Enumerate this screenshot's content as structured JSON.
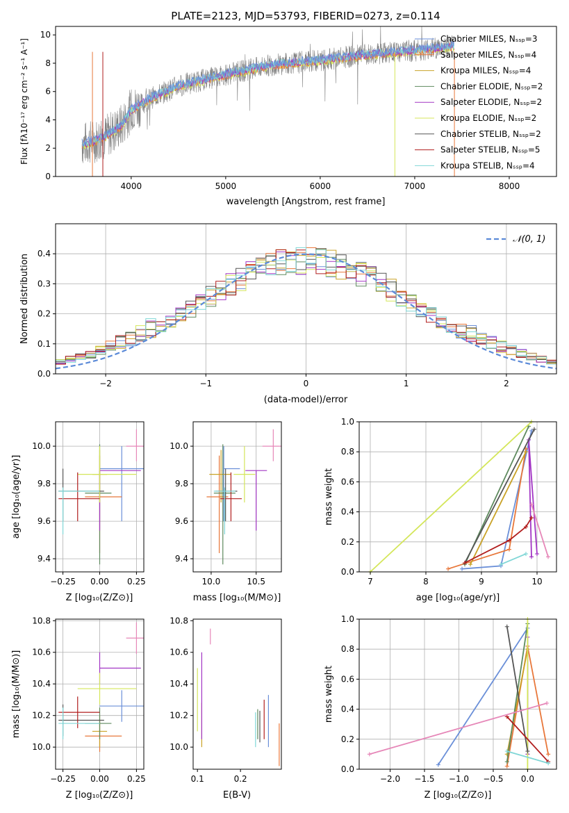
{
  "colors": {
    "chabrier_miles": "#6a8fd8",
    "salpeter_miles": "#e8773a",
    "kroupa_miles": "#c9a227",
    "chabrier_elodie": "#5e8a5e",
    "salpeter_elodie": "#a235c4",
    "kroupa_elodie": "#d4e65a",
    "chabrier_stelib": "#555555",
    "salpeter_stelib": "#b11d1d",
    "kroupa_stelib": "#7fd6d6",
    "pink": "#e687b8",
    "lime": "#c8e85a",
    "spectrum_gray": "#808080",
    "gaussian": "#5b8ad8",
    "grid": "#b0b0b0"
  },
  "chart_data": [
    {
      "type": "line",
      "title": "PLATE=2123, MJD=53793, FIBERID=0273, z=0.114",
      "xlabel": "wavelength [Angstrom, rest frame]",
      "ylabel": "Flux [fλ10⁻¹⁷ erg cm⁻² s⁻¹ A⁻¹]",
      "xlim": [
        3200,
        8500
      ],
      "ylim": [
        0,
        10.6
      ],
      "xticks": [
        "4000",
        "5000",
        "6000",
        "7000",
        "8000"
      ],
      "yticks": [
        "0",
        "2",
        "4",
        "6",
        "8",
        "10"
      ],
      "legend_position": "right",
      "legend": [
        {
          "label": "Chabrier MILES, Nₛₛₚ=3",
          "color_key": "chabrier_miles"
        },
        {
          "label": "Salpeter MILES, Nₛₛₚ=4",
          "color_key": "salpeter_miles"
        },
        {
          "label": "Kroupa MILES, Nₛₛₚ=4",
          "color_key": "kroupa_miles"
        },
        {
          "label": "Chabrier ELODIE, Nₛₛₚ=2",
          "color_key": "chabrier_elodie"
        },
        {
          "label": "Salpeter ELODIE, Nₛₛₚ=2",
          "color_key": "salpeter_elodie"
        },
        {
          "label": "Kroupa ELODIE, Nₛₛₚ=2",
          "color_key": "kroupa_elodie"
        },
        {
          "label": "Chabrier STELIB, Nₛₛₚ=2",
          "color_key": "chabrier_stelib"
        },
        {
          "label": "Salpeter STELIB, Nₛₛₚ=5",
          "color_key": "salpeter_stelib"
        },
        {
          "label": "Kroupa STELIB, Nₛₛₚ=4",
          "color_key": "kroupa_stelib"
        }
      ],
      "continuum": {
        "x": [
          3500,
          3700,
          3900,
          4000,
          4200,
          4500,
          5000,
          5500,
          6000,
          6500,
          7000,
          7400
        ],
        "y": [
          2.3,
          2.7,
          3.6,
          4.7,
          5.5,
          6.4,
          7.2,
          7.9,
          8.2,
          8.6,
          8.9,
          9.2
        ]
      }
    },
    {
      "type": "line",
      "xlabel": "(data-model)/error",
      "ylabel": "Normed distribution",
      "xlim": [
        -2.5,
        2.5
      ],
      "ylim": [
        0,
        0.5
      ],
      "xticks": [
        "−2",
        "−1",
        "0",
        "1",
        "2"
      ],
      "yticks": [
        "0.0",
        "0.1",
        "0.2",
        "0.3",
        "0.4"
      ],
      "legend_position": "top-right",
      "legend_label": "𝒩(0, 1)",
      "grid": true,
      "gaussian": {
        "mean": 0,
        "sigma": 1
      }
    },
    {
      "type": "scatter",
      "xlabel": "Z [log₁₀(Z/Z⊙)]",
      "ylabel": "age  [log₁₀(age/yr)]",
      "xlim": [
        -0.3,
        0.3
      ],
      "ylim": [
        9.33,
        10.13
      ],
      "xticks": [
        "−0.25",
        "0.00",
        "0.25"
      ],
      "yticks": [
        "9.4",
        "9.6",
        "9.8",
        "10.0"
      ],
      "grid": true
    },
    {
      "type": "scatter",
      "xlabel": "mass [log₁₀(M/M⊙)]",
      "xlim": [
        9.8,
        10.78
      ],
      "ylim": [
        9.33,
        10.13
      ],
      "xticks": [
        "10.0",
        "10.5"
      ],
      "yticks": [
        "9.4",
        "9.6",
        "9.8",
        "10.0"
      ],
      "grid": true
    },
    {
      "type": "line",
      "xlabel": "age  [log₁₀(age/yr)]",
      "ylabel": "mass weight",
      "xlim": [
        6.8,
        10.35
      ],
      "ylim": [
        0,
        1
      ],
      "xticks": [
        "7",
        "8",
        "9",
        "10"
      ],
      "yticks": [
        "0.0",
        "0.2",
        "0.4",
        "0.6",
        "0.8",
        "1.0"
      ],
      "grid": true
    },
    {
      "type": "scatter",
      "xlabel": "Z [log₁₀(Z/Z⊙)]",
      "ylabel": "mass [log₁₀(M/M⊙)]",
      "xlim": [
        -0.3,
        0.3
      ],
      "ylim": [
        9.86,
        10.81
      ],
      "xticks": [
        "−0.25",
        "0.00",
        "0.25"
      ],
      "yticks": [
        "10.0",
        "10.2",
        "10.4",
        "10.6",
        "10.8"
      ],
      "grid": true
    },
    {
      "type": "scatter",
      "xlabel": "E(B-V)",
      "xlim": [
        0.09,
        0.295
      ],
      "ylim": [
        9.86,
        10.81
      ],
      "xticks": [
        "0.1",
        "0.2"
      ],
      "yticks": [
        "10.0",
        "10.2",
        "10.4",
        "10.6",
        "10.8"
      ]
    },
    {
      "type": "line",
      "xlabel": "Z [log₁₀(Z/Z⊙)]",
      "ylabel": "mass weight",
      "xlim": [
        -2.45,
        0.42
      ],
      "ylim": [
        0,
        1
      ],
      "xticks": [
        "−2.0",
        "−1.5",
        "−1.0",
        "−0.5",
        "0.0"
      ],
      "yticks": [
        "0.0",
        "0.2",
        "0.4",
        "0.6",
        "0.8",
        "1.0"
      ],
      "grid": true
    }
  ],
  "model_fits": [
    {
      "color_key": "chabrier_miles",
      "Z": [
        0.0,
        0.3
      ],
      "Zc": 0.15,
      "age": [
        9.88,
        9.6,
        10.0
      ],
      "mass": [
        10.26,
        10.2
      ],
      "massc": 10.14,
      "ebv": [
        0.265,
        10.33,
        10.0
      ],
      "sfh_age": [
        8.65,
        9.35,
        9.9
      ],
      "sfh_w": [
        0.02,
        0.04,
        0.94
      ],
      "sfh_Z": [
        -1.3,
        0.0
      ],
      "sfh_Zw": [
        0.03,
        0.94
      ]
    },
    {
      "color_key": "salpeter_miles",
      "Z": [
        -0.1,
        0.15
      ],
      "Zc": 0.0,
      "age": [
        9.73,
        9.43,
        9.95
      ],
      "mass": [
        10.07,
        10.07
      ],
      "massc": 10.09,
      "ebv": [
        0.29,
        10.15,
        9.88
      ],
      "sfh_age": [
        8.4,
        9.5,
        9.8
      ],
      "sfh_w": [
        0.02,
        0.15,
        0.82
      ],
      "sfh_Z": [
        -0.3,
        0.0,
        0.3
      ],
      "sfh_Zw": [
        0.02,
        0.82,
        0.1
      ]
    },
    {
      "color_key": "kroupa_miles",
      "Z": [
        -0.05,
        0.05
      ],
      "Zc": 0.0,
      "age": [
        9.85,
        9.7,
        9.98
      ],
      "mass": [
        10.1,
        10.1
      ],
      "massc": 10.11,
      "ebv": [
        0.11,
        10.28,
        10.0
      ],
      "sfh_age": [
        8.8,
        9.8
      ],
      "sfh_w": [
        0.05,
        0.8
      ],
      "sfh_Z": [
        -0.3,
        0.0
      ],
      "sfh_Zw": [
        0.1,
        0.8
      ]
    },
    {
      "color_key": "chabrier_elodie",
      "Z": [
        -0.1,
        0.08
      ],
      "Zc": 0.0,
      "age": [
        9.75,
        9.37,
        10.01
      ],
      "mass": [
        10.15,
        10.15
      ],
      "massc": 10.13,
      "ebv": [
        0.24,
        10.24,
        10.05
      ],
      "sfh_age": [
        8.7,
        9.85
      ],
      "sfh_w": [
        0.05,
        0.97
      ],
      "sfh_Z": [
        -0.3,
        0.0
      ],
      "sfh_Zw": [
        0.05,
        0.97
      ]
    },
    {
      "color_key": "salpeter_elodie",
      "Z": [
        0.0,
        0.28
      ],
      "Zc": 0.0,
      "age": [
        9.87,
        9.55,
        9.87
      ],
      "mass": [
        10.5,
        10.5
      ],
      "massc": 10.5,
      "ebv": [
        0.11,
        10.6,
        10.05
      ],
      "sfh_age": [
        9.9,
        9.85,
        10.0
      ],
      "sfh_w": [
        0.1,
        0.88,
        0.12
      ],
      "sfh_Z": [
        0.0,
        0.0
      ],
      "sfh_Zw": [
        0.1,
        0.88
      ]
    },
    {
      "color_key": "kroupa_elodie",
      "Z": [
        -0.15,
        0.25
      ],
      "Zc": 0.0,
      "age": [
        9.85,
        9.7,
        10.0
      ],
      "mass": [
        10.37,
        10.37
      ],
      "massc": 10.37,
      "ebv": [
        0.1,
        10.5,
        10.1
      ],
      "sfh_age": [
        7.0,
        9.9
      ],
      "sfh_w": [
        0.0,
        1.0
      ],
      "sfh_Z": [
        0.0,
        0.0
      ],
      "sfh_Zw": [
        0.0,
        1.0
      ]
    },
    {
      "color_key": "chabrier_stelib",
      "Z": [
        -0.28,
        0.03
      ],
      "Zc": -0.25,
      "age": [
        9.76,
        9.6,
        9.88
      ],
      "mass": [
        10.17,
        10.17
      ],
      "massc": 10.16,
      "ebv": [
        0.245,
        10.23,
        10.03
      ],
      "sfh_age": [
        8.7,
        9.95
      ],
      "sfh_w": [
        0.06,
        0.95
      ],
      "sfh_Z": [
        -0.3,
        0.0
      ],
      "sfh_Zw": [
        0.95,
        0.12
      ]
    },
    {
      "color_key": "salpeter_stelib",
      "Z": [
        -0.28,
        0.0
      ],
      "Zc": -0.15,
      "age": [
        9.72,
        9.6,
        9.86
      ],
      "mass": [
        10.22,
        10.22
      ],
      "massc": 10.22,
      "ebv": [
        0.255,
        10.3,
        10.05
      ],
      "sfh_age": [
        8.7,
        9.5,
        9.8,
        9.9
      ],
      "sfh_w": [
        0.06,
        0.21,
        0.3,
        0.36
      ],
      "sfh_Z": [
        -0.3,
        0.3
      ],
      "sfh_Zw": [
        0.35,
        0.05
      ]
    },
    {
      "color_key": "kroupa_stelib",
      "Z": [
        -0.28,
        0.0
      ],
      "Zc": -0.25,
      "age": [
        9.76,
        9.53,
        9.78
      ],
      "mass": [
        10.15,
        10.15
      ],
      "massc": 10.15,
      "ebv": [
        0.235,
        10.22,
        10.0
      ],
      "sfh_age": [
        9.35,
        9.8
      ],
      "sfh_w": [
        0.05,
        0.12
      ],
      "sfh_Z": [
        -0.3,
        0.3
      ],
      "sfh_Zw": [
        0.12,
        0.04
      ]
    },
    {
      "color_key": "pink",
      "Z": [
        0.18,
        0.3
      ],
      "Zc": 0.25,
      "age": [
        10.0,
        9.92,
        10.09
      ],
      "mass": [
        10.69,
        10.69
      ],
      "massc": 10.69,
      "ebv": [
        0.13,
        10.65,
        10.75
      ],
      "sfh_age": [
        9.9,
        10.2
      ],
      "sfh_w": [
        0.45,
        0.1
      ],
      "sfh_Z": [
        -2.3,
        0.28
      ],
      "sfh_Zw": [
        0.1,
        0.44
      ]
    }
  ]
}
